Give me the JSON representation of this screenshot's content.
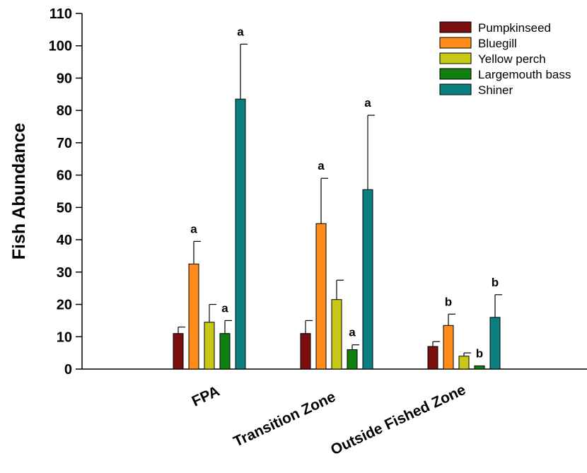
{
  "chart_data": {
    "type": "bar",
    "title": "",
    "xlabel": "",
    "ylabel": "Fish Abundance",
    "ylim": [
      0,
      110
    ],
    "yticks": [
      0,
      10,
      20,
      30,
      40,
      50,
      60,
      70,
      80,
      90,
      100,
      110
    ],
    "categories": [
      "FPA",
      "Transition Zone",
      "Outside Fished Zone"
    ],
    "series": [
      {
        "name": "Pumpkinseed",
        "color": "#7b0f0f",
        "values": [
          11,
          11,
          7
        ],
        "errors": [
          2,
          4,
          1.5
        ],
        "labels": [
          "",
          "",
          ""
        ]
      },
      {
        "name": "Bluegill",
        "color": "#ff8c1a",
        "values": [
          32.5,
          45,
          13.5
        ],
        "errors": [
          7,
          14,
          3.5
        ],
        "labels": [
          "a",
          "a",
          "b"
        ]
      },
      {
        "name": "Yellow perch",
        "color": "#c8c817",
        "values": [
          14.5,
          21.5,
          4
        ],
        "errors": [
          5.5,
          6,
          1
        ],
        "labels": [
          "",
          "",
          ""
        ]
      },
      {
        "name": "Largemouth bass",
        "color": "#0f7f0f",
        "values": [
          11,
          6,
          1
        ],
        "errors": [
          4,
          1.5,
          0
        ],
        "labels": [
          "a",
          "a",
          "b"
        ]
      },
      {
        "name": "Shiner",
        "color": "#0b7f7f",
        "values": [
          83.5,
          55.5,
          16
        ],
        "errors": [
          17,
          23,
          7
        ],
        "labels": [
          "a",
          "a",
          "b"
        ]
      }
    ],
    "legend_position": "top-right",
    "grid": false
  }
}
